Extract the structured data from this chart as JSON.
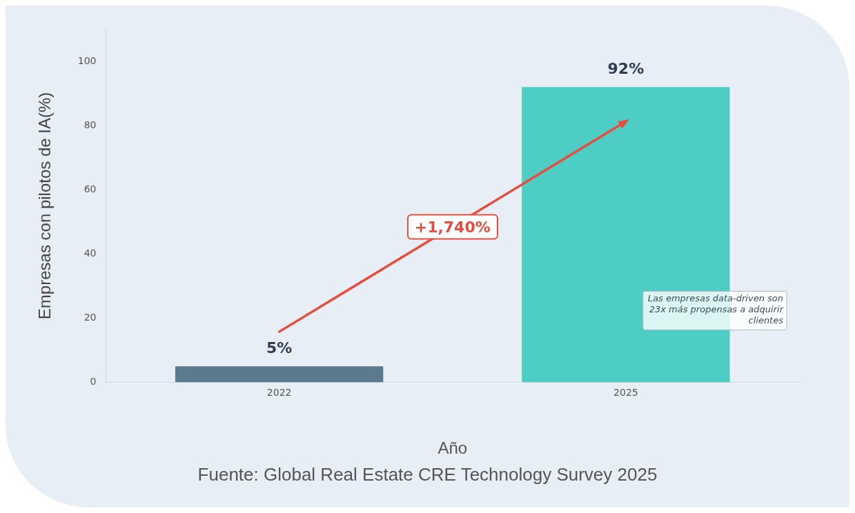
{
  "chart_data": {
    "type": "bar",
    "xlabel": "Año",
    "ylabel": "Empresas con pilotos de IA(%)",
    "categories": [
      "2022",
      "2025"
    ],
    "values": [
      5,
      92
    ],
    "colors": [
      "#5b7a8e",
      "#4ecdc4"
    ],
    "value_labels": [
      "5%",
      "92%"
    ],
    "ylim": [
      0,
      110
    ],
    "yticks": [
      0,
      20,
      40,
      60,
      80,
      100
    ],
    "grid": false,
    "annotations": [
      "+1,740%",
      "Las empresas data-driven son 23x más propensas a adquirir clientes",
      "Fuente: Global Real Estate CRE Technology Survey 2025"
    ]
  }
}
